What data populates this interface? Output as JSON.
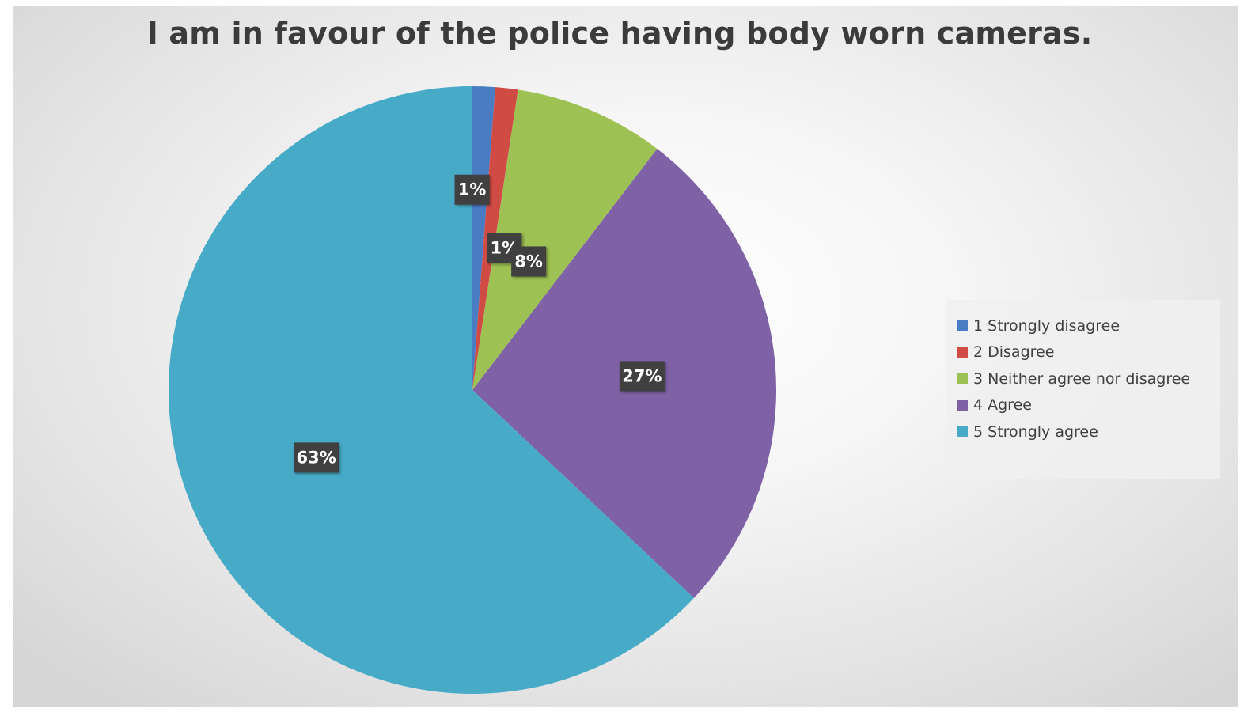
{
  "chart_data": {
    "type": "pie",
    "title": "I am in favour of the police having body worn cameras.",
    "categories": [
      "1 Strongly disagree",
      "2 Disagree",
      "3 Neither agree nor disagree",
      "4 Agree",
      "5 Strongly agree"
    ],
    "values": [
      1.2,
      1.2,
      8.0,
      26.6,
      63.0
    ],
    "data_labels": [
      "1%",
      "1%",
      "8%",
      "27%",
      "63%"
    ],
    "colors": [
      "#4a7cc4",
      "#d14b45",
      "#9dc153",
      "#7f62a6",
      "#47abc8"
    ],
    "start_angle_deg": 0,
    "direction": "clockwise",
    "legend_position": "right"
  }
}
